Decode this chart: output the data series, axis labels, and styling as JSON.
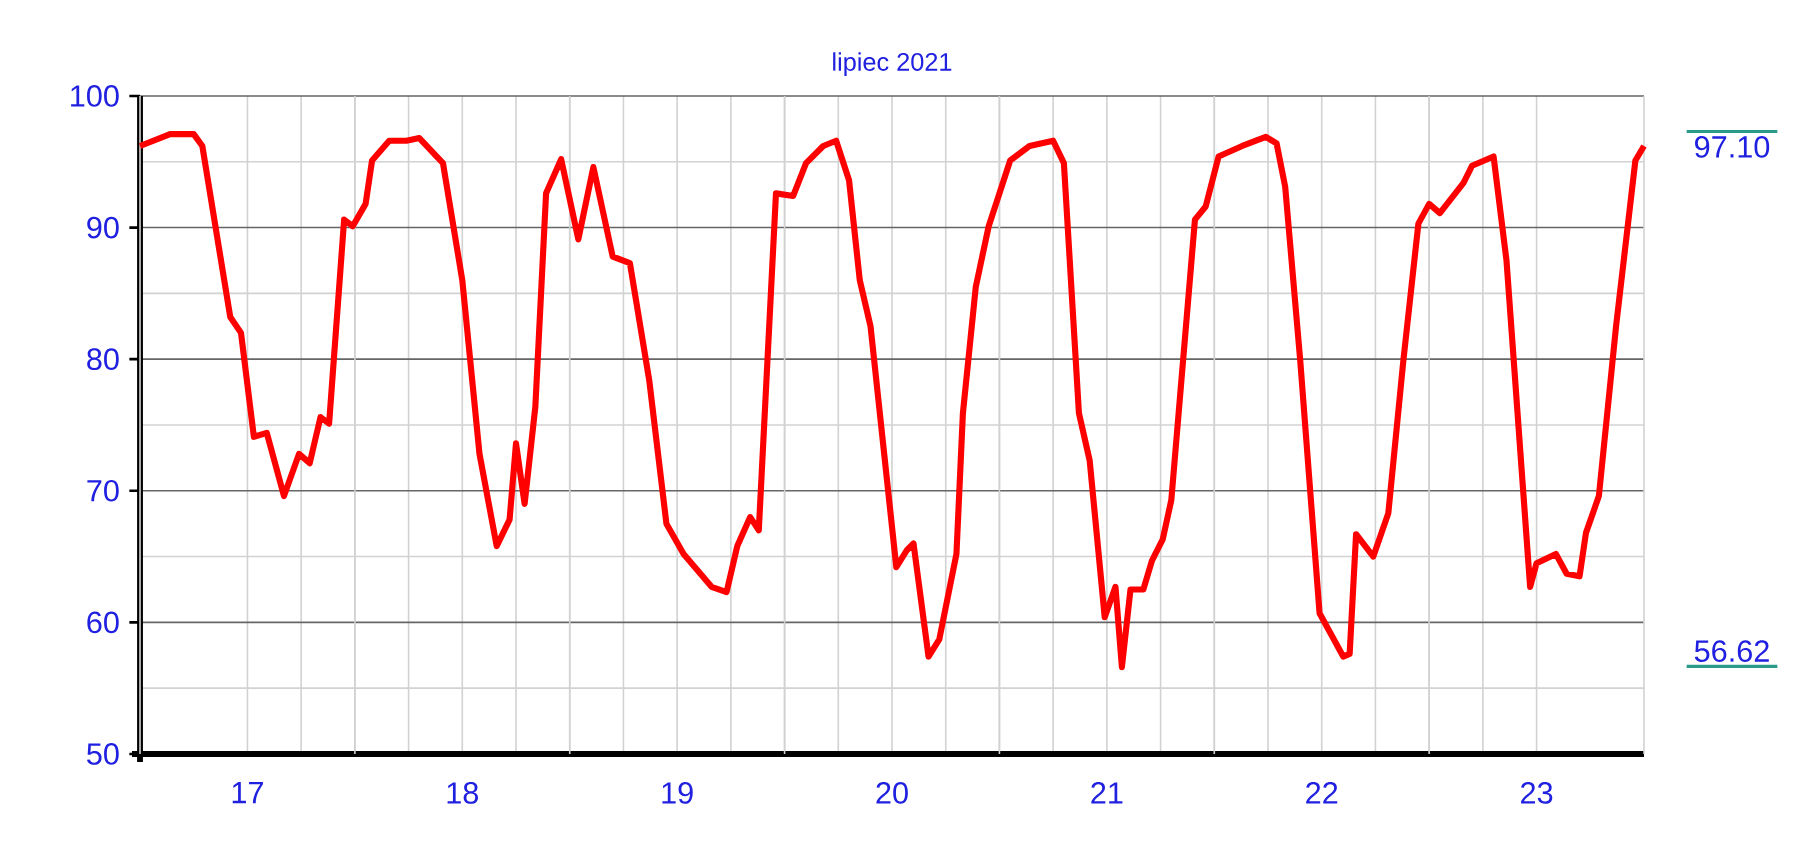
{
  "chart_data": {
    "type": "line",
    "title": "lipiec 2021",
    "x": [
      17.0,
      17.14,
      17.25,
      17.29,
      17.42,
      17.47,
      17.53,
      17.59,
      17.67,
      17.74,
      17.79,
      17.84,
      17.88,
      17.95,
      17.99,
      18.05,
      18.08,
      18.16,
      18.24,
      18.3,
      18.41,
      18.5,
      18.58,
      18.66,
      18.72,
      18.75,
      18.79,
      18.84,
      18.89,
      18.96,
      19.04,
      19.11,
      19.2,
      19.28,
      19.37,
      19.45,
      19.53,
      19.66,
      19.73,
      19.78,
      19.84,
      19.88,
      19.96,
      20.04,
      20.1,
      20.18,
      20.24,
      20.3,
      20.35,
      20.4,
      20.52,
      20.57,
      20.6,
      20.67,
      20.72,
      20.8,
      20.83,
      20.89,
      20.95,
      21.05,
      21.14,
      21.25,
      21.3,
      21.37,
      21.42,
      21.49,
      21.54,
      21.57,
      21.61,
      21.67,
      21.71,
      21.76,
      21.8,
      21.91,
      21.96,
      22.02,
      22.13,
      22.24,
      22.29,
      22.33,
      22.4,
      22.49,
      22.6,
      22.63,
      22.66,
      22.74,
      22.81,
      22.88,
      22.95,
      23.0,
      23.05,
      23.16,
      23.2,
      23.3,
      23.36,
      23.47,
      23.5,
      23.59,
      23.64,
      23.7,
      23.73,
      23.79,
      23.87,
      23.96,
      24.0
    ],
    "series": [
      {
        "color": "#ff0000",
        "values": [
          96.2,
          97.1,
          97.1,
          96.2,
          83.2,
          82.0,
          74.1,
          74.4,
          69.6,
          72.8,
          72.1,
          75.6,
          75.1,
          90.6,
          90.1,
          91.8,
          95.1,
          96.6,
          96.6,
          96.8,
          94.9,
          86.0,
          72.8,
          65.8,
          67.8,
          73.6,
          69.0,
          76.4,
          92.6,
          95.2,
          89.1,
          94.6,
          87.8,
          87.3,
          78.4,
          67.5,
          65.2,
          62.7,
          62.3,
          65.8,
          68.0,
          67.0,
          92.6,
          92.4,
          94.9,
          96.2,
          96.6,
          93.6,
          86.0,
          82.5,
          64.2,
          65.5,
          66.0,
          57.4,
          58.7,
          65.2,
          75.9,
          85.5,
          90.1,
          95.1,
          96.2,
          96.6,
          94.9,
          75.9,
          72.3,
          60.4,
          62.7,
          56.6,
          62.5,
          62.5,
          64.7,
          66.3,
          69.3,
          90.6,
          91.6,
          95.4,
          96.2,
          96.9,
          96.4,
          93.1,
          79.9,
          60.7,
          57.4,
          57.6,
          66.7,
          65.0,
          68.3,
          79.9,
          90.3,
          91.8,
          91.1,
          93.4,
          94.7,
          95.4,
          87.5,
          62.7,
          64.5,
          65.2,
          63.7,
          63.5,
          66.8,
          69.6,
          82.5,
          95.1,
          96.2
        ]
      }
    ],
    "xlim": [
      17,
      24
    ],
    "xticks": [
      {
        "value": 17,
        "label": null
      },
      {
        "value": 17.5,
        "label": "17"
      },
      {
        "value": 18,
        "label": null
      },
      {
        "value": 18.5,
        "label": "18"
      },
      {
        "value": 19,
        "label": null
      },
      {
        "value": 19.5,
        "label": "19"
      },
      {
        "value": 20,
        "label": null
      },
      {
        "value": 20.5,
        "label": "20"
      },
      {
        "value": 21,
        "label": null
      },
      {
        "value": 21.5,
        "label": "21"
      },
      {
        "value": 22,
        "label": null
      },
      {
        "value": 22.5,
        "label": "22"
      },
      {
        "value": 23,
        "label": null
      },
      {
        "value": 23.5,
        "label": "23"
      },
      {
        "value": 24,
        "label": null
      }
    ],
    "ylim": [
      50,
      100
    ],
    "yticks": [
      50,
      60,
      70,
      80,
      90,
      100
    ],
    "grid": true,
    "annotations": [
      "97.10",
      "56.62"
    ]
  }
}
